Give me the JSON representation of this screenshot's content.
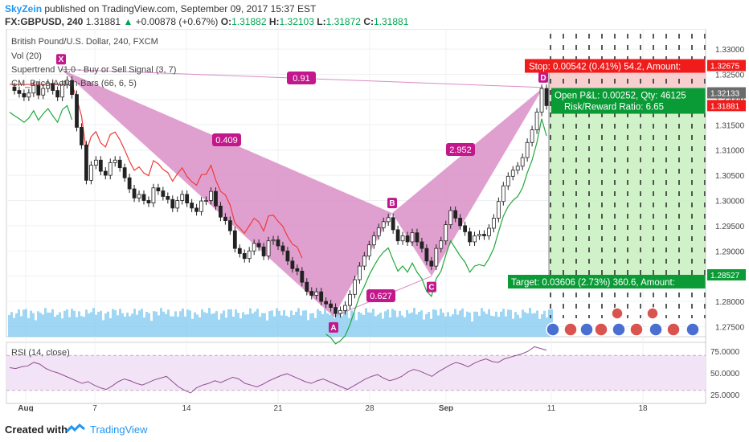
{
  "header": {
    "author": "SkyZein",
    "published_text": "published on TradingView.com, September 09, 2017 15:37 EST",
    "symbol": "FX:GBPUSD, 240",
    "last": "1.31881",
    "arrow": "▲",
    "change": "+0.00878 (+0.67%)",
    "o_label": "O:",
    "o_value": "1.31882",
    "h_label": "H:",
    "h_value": "1.32103",
    "l_label": "L:",
    "l_value": "1.31872",
    "c_label": "C:",
    "c_value": "1.31881"
  },
  "indicators": {
    "title": "British Pound/U.S. Dollar, 240, FXCM",
    "vol": "Vol (20)",
    "supertrend": "Supertrend V1.0 - Buy or Sell Signal (3, 7)",
    "price_action": "CM_Price-Action-Bars (66, 6, 5)",
    "rsi": "RSI (14, close)"
  },
  "footer": {
    "created_with": "Created with",
    "brand": "TradingView"
  },
  "colors": {
    "pattern_fill": "#d98bc5",
    "pattern_point": "#c2188c",
    "stop_red": "#f01c1c",
    "target_green": "#0a9b36",
    "green_zone": "#c8f0c0",
    "red_zone": "#f6caca",
    "rsi_band": "#f3e3f7",
    "rsi_line": "#8e4f8e",
    "volume_blue": "#7ec8ef",
    "supertrend_red": "#ef3a3a",
    "supertrend_green": "#21a83b"
  },
  "chart_data": {
    "type": "candlestick",
    "instrument": "British Pound/U.S. Dollar, 240, FXCM",
    "x_tick_labels": [
      "Aug",
      "7",
      "14",
      "21",
      "28",
      "Sep",
      "11",
      "18"
    ],
    "y_tick_labels": [
      "1.33000",
      "1.32500",
      "1.32000",
      "1.31500",
      "1.31000",
      "1.30500",
      "1.30000",
      "1.29500",
      "1.29000",
      "1.28500",
      "1.28000",
      "1.27500"
    ],
    "ylim": [
      1.273,
      1.334
    ],
    "rsi_tick_labels": [
      "75.0000",
      "50.0000",
      "25.0000"
    ],
    "rsi_ylim": [
      15,
      85
    ],
    "rsi_band": [
      30,
      70
    ],
    "price_labels": [
      {
        "text": "1.32675",
        "value": 1.32675,
        "color": "#f01c1c"
      },
      {
        "text": "1.32133",
        "value": 1.32133,
        "color": "#6b6b6b"
      },
      {
        "text": "1.31881",
        "value": 1.31881,
        "color": "#f01c1c"
      },
      {
        "text": "1.28527",
        "value": 1.28527,
        "color": "#0a9b36"
      }
    ],
    "pattern": {
      "points": [
        {
          "label": "X",
          "value": 1.326
        },
        {
          "label": "A",
          "value": 1.277
        },
        {
          "label": "B",
          "value": 1.2975
        },
        {
          "label": "C",
          "value": 1.285
        },
        {
          "label": "D",
          "value": 1.3224
        }
      ],
      "ratios": [
        "0.91",
        "0.409",
        "0.627",
        "2.952"
      ]
    },
    "position": {
      "stop_text": "Stop: 0.00542 (0.41%) 54.2, Amount:",
      "pl_text": "Open P&L: 0.00252, Qty: 46125",
      "rr_text": "Risk/Reward Ratio: 6.65",
      "target_text": "Target: 0.03606 (2.73%) 360.6, Amount:",
      "entry": 1.32133,
      "stop": 1.32675,
      "target": 1.28527
    },
    "close_series": [
      1.3225,
      1.3218,
      1.3212,
      1.3205,
      1.3213,
      1.3228,
      1.3209,
      1.3222,
      1.3232,
      1.3218,
      1.3205,
      1.323,
      1.3238,
      1.321,
      1.3145,
      1.311,
      1.304,
      1.307,
      1.308,
      1.3058,
      1.305,
      1.3075,
      1.308,
      1.3065,
      1.3045,
      1.3023,
      1.3005,
      1.3012,
      1.3,
      1.2995,
      1.3025,
      1.3019,
      1.3008,
      1.3002,
      1.2985,
      1.3,
      1.3012,
      1.2995,
      1.2985,
      1.2978,
      1.2999,
      1.3,
      1.3018,
      1.2989,
      1.2967,
      1.296,
      1.294,
      1.2905,
      1.2895,
      1.2885,
      1.29,
      1.2915,
      1.2908,
      1.289,
      1.292,
      1.2922,
      1.291,
      1.29,
      1.288,
      1.2865,
      1.286,
      1.2838,
      1.282,
      1.2812,
      1.2819,
      1.28,
      1.2795,
      1.2788,
      1.2776,
      1.2782,
      1.2792,
      1.2814,
      1.2843,
      1.287,
      1.289,
      1.2912,
      1.293,
      1.2946,
      1.2958,
      1.2966,
      1.2942,
      1.292,
      1.293,
      1.2918,
      1.2936,
      1.2918,
      1.2905,
      1.288,
      1.287,
      1.2905,
      1.292,
      1.2952,
      1.298,
      1.2965,
      1.295,
      1.2938,
      1.2918,
      1.293,
      1.2933,
      1.293,
      1.2945,
      1.2965,
      1.2998,
      1.3029,
      1.3048,
      1.306,
      1.3068,
      1.3085,
      1.3115,
      1.314,
      1.3175,
      1.3222,
      1.3188
    ],
    "rsi_series": [
      56,
      55,
      57,
      58,
      62,
      60,
      55,
      52,
      50,
      47,
      44,
      41,
      38,
      40,
      36,
      33,
      31,
      35,
      40,
      43,
      41,
      38,
      36,
      39,
      42,
      44,
      46,
      40,
      34,
      30,
      27,
      33,
      36,
      38,
      41,
      39,
      42,
      45,
      43,
      38,
      36,
      34,
      37,
      41,
      44,
      47,
      49,
      46,
      43,
      40,
      38,
      41,
      43,
      40,
      37,
      34,
      31,
      35,
      39,
      43,
      46,
      48,
      44,
      41,
      43,
      46,
      51,
      54,
      52,
      49,
      46,
      51,
      55,
      59,
      62,
      60,
      57,
      61,
      64,
      66,
      63,
      62,
      66,
      68,
      70,
      72,
      75,
      80,
      78,
      76
    ]
  }
}
